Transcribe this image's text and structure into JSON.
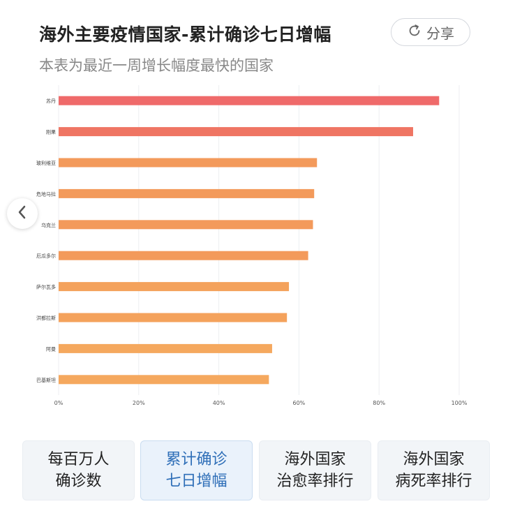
{
  "header": {
    "title": "海外主要疫情国家-累计确诊七日增幅",
    "subtitle": "本表为最近一周增长幅度最快的国家",
    "share_label": "分享"
  },
  "chart_data": {
    "type": "bar",
    "orientation": "horizontal",
    "categories": [
      "苏丹",
      "刚果",
      "玻利维亚",
      "危地马拉",
      "乌克兰",
      "厄瓜多尔",
      "萨尔瓦多",
      "洪都拉斯",
      "阿曼",
      "巴基斯坦"
    ],
    "values": [
      95,
      88.5,
      64.5,
      63.8,
      63.5,
      62.3,
      57.5,
      57.0,
      53.3,
      52.5
    ],
    "xlim": [
      0,
      100
    ],
    "x_ticks": [
      "0%",
      "20%",
      "40%",
      "60%",
      "80%",
      "100%"
    ],
    "grid": true,
    "colors": [
      "#ef6a6a",
      "#ef7563",
      "#f39a5b",
      "#f39a5b",
      "#f39a5b",
      "#f39a5b",
      "#f4a25c",
      "#f4a25c",
      "#f5a85e",
      "#f5a85e"
    ]
  },
  "tabs": [
    {
      "line1": "每百万人",
      "line2": "确诊数",
      "active": false
    },
    {
      "line1": "累计确诊",
      "line2": "七日增幅",
      "active": true
    },
    {
      "line1": "海外国家",
      "line2": "治愈率排行",
      "active": false
    },
    {
      "line1": "海外国家",
      "line2": "病死率排行",
      "active": false
    }
  ]
}
